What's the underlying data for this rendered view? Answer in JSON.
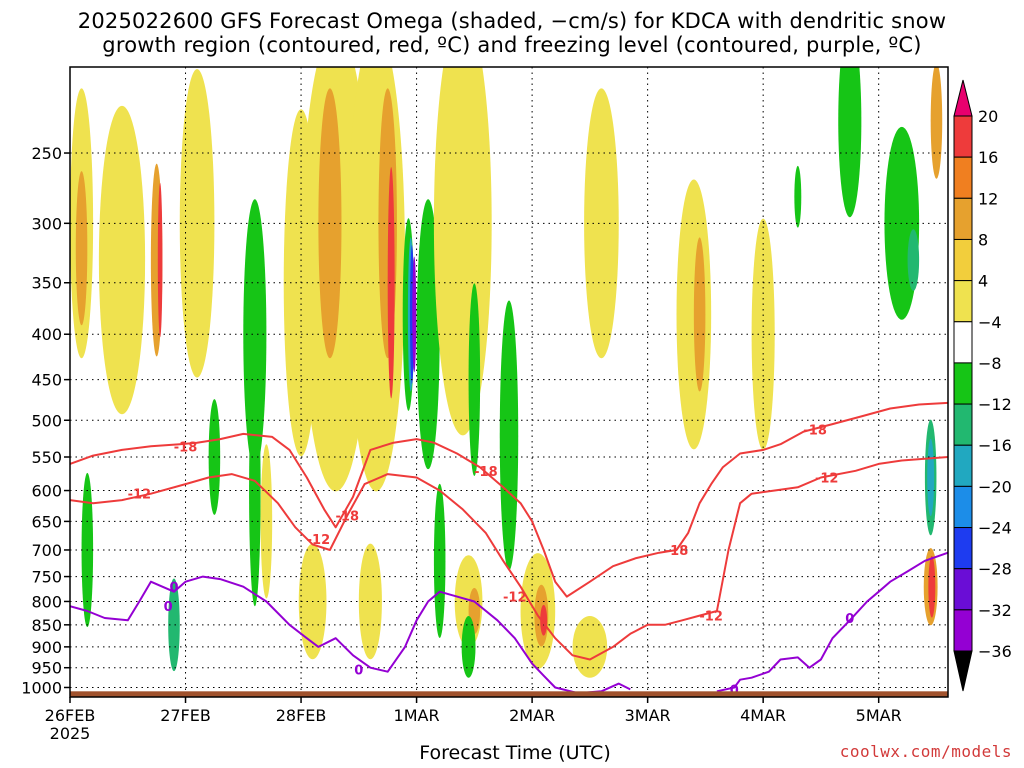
{
  "title": {
    "line1": "2025022600 GFS Forecast Omega (shaded, −cm/s) for KDCA with dendritic snow",
    "line2": "growth region (contoured, red, ºC) and freezing level (contoured, purple, ºC)"
  },
  "credit": "coolwx.com/models",
  "colors": {
    "ground": "#a0522d",
    "snow_region_contour": "#ee3b3b",
    "freezing_level_contour": "#9400d3",
    "gridline": "#000000"
  },
  "chart_data": {
    "type": "heatmap",
    "title": "2025022600 GFS Forecast Omega (shaded, −cm/s) for KDCA with dendritic snow growth region (contoured, red, ºC) and freezing level (contoured, purple, ºC)",
    "xlabel": "Forecast Time (UTC)",
    "ylabel": "",
    "x_tick_labels": [
      "26FEB",
      "27FEB",
      "28FEB",
      "1MAR",
      "2MAR",
      "3MAR",
      "4MAR",
      "5MAR"
    ],
    "x_first_label_year": "2025",
    "xlim_days": [
      0,
      7.6
    ],
    "y_tick_labels": [
      "250",
      "300",
      "350",
      "400",
      "450",
      "500",
      "550",
      "600",
      "650",
      "700",
      "750",
      "800",
      "850",
      "900",
      "950",
      "1000"
    ],
    "y_axis": "pressure (hPa), inverted, log scale",
    "ylim_hpa": [
      1025,
      200
    ],
    "grid": true,
    "colorbar": {
      "labels": [
        "20",
        "16",
        "12",
        "8",
        "4",
        "−4",
        "−8",
        "−12",
        "−16",
        "−20",
        "−24",
        "−28",
        "−32",
        "−36"
      ],
      "colors": [
        "#e8006e",
        "#ee3b3b",
        "#f07f20",
        "#e6a12e",
        "#f2ce3c",
        "#efe24f",
        "#ffffff",
        "#16c516",
        "#22b870",
        "#21a8c0",
        "#1c8de8",
        "#1e3cf0",
        "#6a0dd6",
        "#9400d3",
        "#b2b2b2",
        "#000000"
      ]
    },
    "contour_labels": {
      "snow_region": [
        "-18",
        "-12"
      ],
      "freezing_level": [
        "0"
      ]
    },
    "series": [
      {
        "name": "-18 ºC (dendritic snow growth top)",
        "points": [
          [
            0.0,
            560
          ],
          [
            0.2,
            548
          ],
          [
            0.45,
            540
          ],
          [
            0.7,
            535
          ],
          [
            0.95,
            532
          ],
          [
            1.1,
            530
          ],
          [
            1.3,
            525
          ],
          [
            1.5,
            518
          ],
          [
            1.75,
            522
          ],
          [
            1.9,
            540
          ],
          [
            2.05,
            580
          ],
          [
            2.2,
            630
          ],
          [
            2.3,
            660
          ],
          [
            2.45,
            610
          ],
          [
            2.6,
            540
          ],
          [
            2.8,
            530
          ],
          [
            3.0,
            525
          ],
          [
            3.15,
            530
          ],
          [
            3.35,
            545
          ],
          [
            3.55,
            565
          ],
          [
            3.75,
            595
          ],
          [
            3.9,
            620
          ],
          [
            4.0,
            650
          ],
          [
            4.1,
            700
          ],
          [
            4.2,
            760
          ],
          [
            4.3,
            790
          ],
          [
            4.5,
            760
          ],
          [
            4.7,
            730
          ],
          [
            4.9,
            715
          ],
          [
            5.1,
            705
          ],
          [
            5.25,
            700
          ],
          [
            5.35,
            670
          ],
          [
            5.45,
            620
          ],
          [
            5.55,
            590
          ],
          [
            5.65,
            565
          ],
          [
            5.8,
            545
          ],
          [
            6.0,
            540
          ],
          [
            6.15,
            532
          ],
          [
            6.35,
            515
          ],
          [
            6.6,
            505
          ],
          [
            6.85,
            495
          ],
          [
            7.1,
            485
          ],
          [
            7.35,
            480
          ],
          [
            7.6,
            478
          ]
        ]
      },
      {
        "name": "-12 ºC (dendritic snow growth bottom)",
        "points": [
          [
            0.0,
            615
          ],
          [
            0.2,
            620
          ],
          [
            0.45,
            615
          ],
          [
            0.7,
            605
          ],
          [
            1.0,
            590
          ],
          [
            1.2,
            580
          ],
          [
            1.4,
            575
          ],
          [
            1.6,
            585
          ],
          [
            1.8,
            620
          ],
          [
            1.95,
            660
          ],
          [
            2.1,
            690
          ],
          [
            2.25,
            700
          ],
          [
            2.4,
            640
          ],
          [
            2.55,
            590
          ],
          [
            2.75,
            575
          ],
          [
            3.0,
            580
          ],
          [
            3.2,
            600
          ],
          [
            3.4,
            630
          ],
          [
            3.6,
            670
          ],
          [
            3.75,
            720
          ],
          [
            3.9,
            770
          ],
          [
            4.05,
            830
          ],
          [
            4.2,
            880
          ],
          [
            4.35,
            920
          ],
          [
            4.5,
            930
          ],
          [
            4.7,
            900
          ],
          [
            4.85,
            870
          ],
          [
            5.0,
            850
          ],
          [
            5.15,
            850
          ],
          [
            5.3,
            840
          ],
          [
            5.45,
            830
          ],
          [
            5.6,
            820
          ],
          [
            5.7,
            700
          ],
          [
            5.8,
            620
          ],
          [
            5.9,
            605
          ],
          [
            6.1,
            600
          ],
          [
            6.3,
            595
          ],
          [
            6.5,
            580
          ],
          [
            6.8,
            570
          ],
          [
            7.0,
            560
          ],
          [
            7.2,
            555
          ],
          [
            7.6,
            550
          ]
        ]
      },
      {
        "name": "0 ºC (freezing level)",
        "points": [
          [
            0.0,
            810
          ],
          [
            0.15,
            820
          ],
          [
            0.3,
            835
          ],
          [
            0.5,
            840
          ],
          [
            0.6,
            800
          ],
          [
            0.7,
            760
          ],
          [
            0.8,
            770
          ],
          [
            0.9,
            780
          ],
          [
            1.0,
            760
          ],
          [
            1.15,
            750
          ],
          [
            1.3,
            755
          ],
          [
            1.5,
            770
          ],
          [
            1.7,
            800
          ],
          [
            1.9,
            850
          ],
          [
            2.05,
            880
          ],
          [
            2.15,
            900
          ],
          [
            2.3,
            880
          ],
          [
            2.45,
            920
          ],
          [
            2.6,
            950
          ],
          [
            2.75,
            960
          ],
          [
            2.9,
            900
          ],
          [
            3.0,
            840
          ],
          [
            3.1,
            800
          ],
          [
            3.2,
            780
          ],
          [
            3.35,
            790
          ],
          [
            3.5,
            800
          ],
          [
            3.7,
            840
          ],
          [
            3.85,
            880
          ],
          [
            4.0,
            940
          ],
          [
            4.1,
            970
          ],
          [
            4.2,
            1000
          ],
          [
            4.4,
            1015
          ],
          [
            4.6,
            1010
          ],
          [
            4.75,
            990
          ],
          [
            4.85,
            1005
          ]
        ]
      },
      {
        "name": "0 ºC (freezing level, later segment)",
        "points": [
          [
            5.6,
            1010
          ],
          [
            5.75,
            1000
          ],
          [
            5.8,
            980
          ],
          [
            5.9,
            975
          ],
          [
            6.05,
            960
          ],
          [
            6.15,
            930
          ],
          [
            6.3,
            925
          ],
          [
            6.4,
            950
          ],
          [
            6.5,
            930
          ],
          [
            6.6,
            880
          ],
          [
            6.75,
            840
          ],
          [
            6.9,
            800
          ],
          [
            7.0,
            780
          ],
          [
            7.1,
            760
          ],
          [
            7.25,
            740
          ],
          [
            7.4,
            720
          ],
          [
            7.6,
            705
          ]
        ]
      }
    ]
  }
}
